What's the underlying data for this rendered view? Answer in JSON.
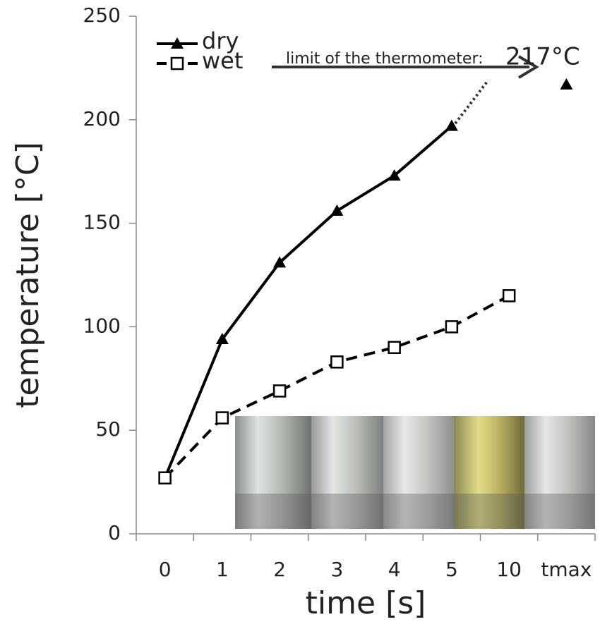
{
  "chart_data": {
    "type": "line",
    "categories": [
      "0",
      "1",
      "2",
      "3",
      "4",
      "5",
      "10",
      "tmax"
    ],
    "series": [
      {
        "name": "dry",
        "color": "#000000",
        "dash": "solid",
        "marker": "triangle",
        "values": [
          27,
          94,
          131,
          156,
          173,
          197,
          null,
          217
        ]
      },
      {
        "name": "wet",
        "color": "#000000",
        "dash": "dashed",
        "marker": "square",
        "values": [
          27,
          56,
          69,
          83,
          90,
          100,
          115,
          null
        ]
      }
    ],
    "ylim": [
      0,
      250
    ],
    "yticks": [
      0,
      50,
      100,
      150,
      200,
      250
    ],
    "xlabel": "time [s]",
    "ylabel": "temperature [°C]",
    "annotation": {
      "text": "limit of the thermometer:",
      "value_text": "217°C"
    },
    "grid": false,
    "legend": "top-left"
  }
}
